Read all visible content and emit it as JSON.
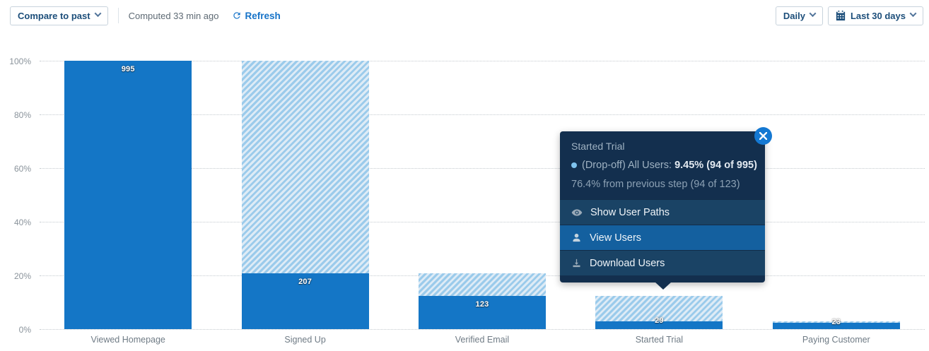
{
  "toolbar": {
    "compare_button_label": "Compare to past",
    "computed_text": "Computed 33 min ago",
    "refresh_label": "Refresh",
    "granularity_button_label": "Daily",
    "date_range_button_label": "Last 30 days"
  },
  "colors": {
    "bar_solid": "#1476c6",
    "hatch_stripe_dark": "#9bcbeb",
    "hatch_stripe_light": "#deebf6",
    "accent_blue": "#1673c8",
    "tooltip_bg": "#132f4e",
    "tooltip_row_bg": "#1a4365",
    "tooltip_row_active_bg": "#14609f",
    "close_button_bg": "#1478d2",
    "gridline": "#c4cacf"
  },
  "chart_data": {
    "type": "bar",
    "subtype": "funnel-conversion",
    "title": "",
    "categories": [
      "Viewed Homepage",
      "Signed Up",
      "Verified Email",
      "Started Trial",
      "Paying Customer"
    ],
    "values": [
      995,
      207,
      123,
      29,
      23
    ],
    "value_labels": [
      "995",
      "207",
      "123",
      "29",
      "23"
    ],
    "conversion_pct_of_total": [
      100.0,
      20.8,
      12.36,
      2.91,
      2.31
    ],
    "dropoff_segment_top_pct": [
      null,
      100.0,
      20.8,
      12.36,
      2.91
    ],
    "xlabel": "",
    "ylabel": "",
    "yticks": [
      "0%",
      "20%",
      "40%",
      "60%",
      "80%",
      "100%"
    ],
    "ylim": [
      0,
      100
    ],
    "grid": "horizontal-dotted",
    "legend": "none",
    "note": "hatched segment above each solid bar = drop-off from previous step"
  },
  "tooltip": {
    "title": "Started Trial",
    "dropoff_label": "(Drop-off) All Users:",
    "dropoff_value": "9.45% (94 of 995)",
    "previous_step_line": "76.4% from previous step (94 of 123)",
    "menu": [
      {
        "icon": "eye-icon",
        "label": "Show User Paths",
        "active": false
      },
      {
        "icon": "user-icon",
        "label": "View Users",
        "active": true
      },
      {
        "icon": "download-icon",
        "label": "Download Users",
        "active": false
      }
    ]
  }
}
